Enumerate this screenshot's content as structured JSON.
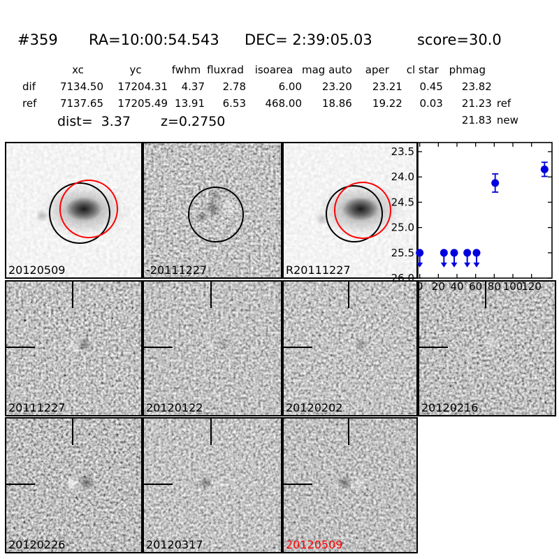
{
  "header": {
    "id": "#359",
    "ra": "RA=10:00:54.543",
    "dec": "DEC= 2:39:05.03",
    "score": "score=30.0"
  },
  "table": {
    "columns": [
      "xc",
      "yc",
      "fwhm",
      "fluxrad",
      "isoarea",
      "mag auto",
      "aper",
      "cl star",
      "phmag"
    ],
    "rows": [
      {
        "label": "dif",
        "values": [
          "7134.50",
          "17204.31",
          "4.37",
          "2.78",
          "6.00",
          "23.20",
          "23.21",
          "0.45",
          "23.82"
        ],
        "suffix": ""
      },
      {
        "label": "ref",
        "values": [
          "7137.65",
          "17205.49",
          "13.91",
          "6.53",
          "468.00",
          "18.86",
          "19.22",
          "0.03",
          "21.23"
        ],
        "suffix": "ref"
      }
    ],
    "extra_row": {
      "phmag": "21.83",
      "suffix": "new"
    },
    "dist_label": "dist=  3.37",
    "z_label": "z=0.2750"
  },
  "cutouts": {
    "row1": [
      {
        "label": "20120509",
        "type": "new-image",
        "overlays": "black circle + red circle"
      },
      {
        "label": "-20111227",
        "type": "difference",
        "overlays": "black circle"
      },
      {
        "label": "R20111227",
        "type": "reference",
        "overlays": "black circle + red circle"
      }
    ],
    "row2": [
      {
        "label": "20111227"
      },
      {
        "label": "20120122"
      },
      {
        "label": "20120202"
      },
      {
        "label": "20120216"
      }
    ],
    "row3": [
      {
        "label": "20120226"
      },
      {
        "label": "20120317"
      },
      {
        "label": "20120509",
        "color": "#ff0000"
      }
    ]
  },
  "colors": {
    "aperture_circle": "#000000",
    "reference_circle": "#ff0000",
    "highlight_label": "#ff0000",
    "marker": "#0000dd"
  },
  "chart_data": {
    "type": "scatter",
    "title": "",
    "xlabel": "",
    "ylabel": "",
    "points": [
      {
        "x": 0,
        "mag": 25.5,
        "upper_limit": true
      },
      {
        "x": 26,
        "mag": 25.5,
        "upper_limit": true
      },
      {
        "x": 37,
        "mag": 25.5,
        "upper_limit": true
      },
      {
        "x": 51,
        "mag": 25.5,
        "upper_limit": true
      },
      {
        "x": 61,
        "mag": 25.5,
        "upper_limit": true
      },
      {
        "x": 81,
        "mag": 24.12,
        "err": 0.18,
        "upper_limit": false
      },
      {
        "x": 134,
        "mag": 23.85,
        "err": 0.14,
        "upper_limit": false
      }
    ],
    "xticks": [
      0,
      20,
      40,
      60,
      80,
      100,
      120
    ],
    "yticks": [
      23.5,
      24.0,
      24.5,
      25.0,
      25.5,
      26.0
    ],
    "xlim": [
      -2,
      142
    ],
    "ylim": [
      26.0,
      23.32
    ],
    "y_axis_inverted": true,
    "grid": false,
    "legend_position": "none",
    "marker_color": "#0000dd"
  }
}
